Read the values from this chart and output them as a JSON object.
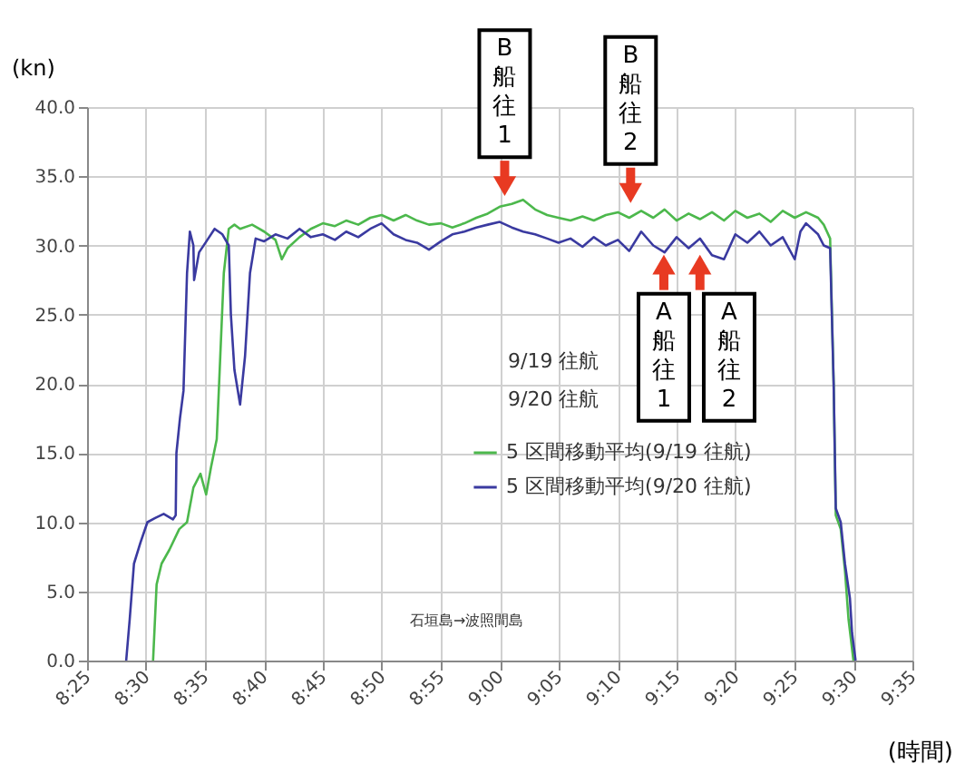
{
  "chart_data": {
    "type": "line",
    "ylabel": "(kn)",
    "xlabel": "(時間)",
    "xlim": [
      8.4167,
      9.5833
    ],
    "xticks": [
      {
        "value": 8.4167,
        "label": "8:25"
      },
      {
        "value": 8.5,
        "label": "8:30"
      },
      {
        "value": 8.5833,
        "label": "8:35"
      },
      {
        "value": 8.6667,
        "label": "8:40"
      },
      {
        "value": 8.75,
        "label": "8:45"
      },
      {
        "value": 8.8333,
        "label": "8:50"
      },
      {
        "value": 8.9167,
        "label": "8:55"
      },
      {
        "value": 9,
        "label": "9:00"
      },
      {
        "value": 9.0833,
        "label": "9:05"
      },
      {
        "value": 9.1667,
        "label": "9:10"
      },
      {
        "value": 9.25,
        "label": "9:15"
      },
      {
        "value": 9.3333,
        "label": "9:20"
      },
      {
        "value": 9.4167,
        "label": "9:25"
      },
      {
        "value": 9.5,
        "label": "9:30"
      },
      {
        "value": 9.5833,
        "label": "9:35"
      }
    ],
    "ylim": [
      0,
      40
    ],
    "yticks": [
      {
        "value": 0,
        "label": "0.0"
      },
      {
        "value": 5,
        "label": "5.0"
      },
      {
        "value": 10,
        "label": "10.0"
      },
      {
        "value": 15,
        "label": "15.0"
      },
      {
        "value": 20,
        "label": "20.0"
      },
      {
        "value": 25,
        "label": "25.0"
      },
      {
        "value": 30,
        "label": "30.0"
      },
      {
        "value": 35,
        "label": "35.0"
      },
      {
        "value": 40,
        "label": "40.0"
      }
    ],
    "grid": true,
    "legend": "center",
    "series": [
      {
        "name": "5 区間移動平均(9/19 往航)",
        "color": "#4cb84c",
        "x": [
          8.51,
          8.515,
          8.522,
          8.533,
          8.547,
          8.558,
          8.567,
          8.577,
          8.585,
          8.592,
          8.6,
          8.605,
          8.61,
          8.617,
          8.625,
          8.633,
          8.65,
          8.667,
          8.683,
          8.692,
          8.7,
          8.717,
          8.733,
          8.75,
          8.767,
          8.783,
          8.8,
          8.817,
          8.833,
          8.85,
          8.867,
          8.883,
          8.9,
          8.917,
          8.933,
          8.95,
          8.967,
          8.983,
          9.0,
          9.017,
          9.033,
          9.05,
          9.067,
          9.083,
          9.1,
          9.117,
          9.133,
          9.15,
          9.167,
          9.183,
          9.2,
          9.217,
          9.233,
          9.25,
          9.267,
          9.283,
          9.3,
          9.317,
          9.333,
          9.35,
          9.367,
          9.383,
          9.4,
          9.417,
          9.433,
          9.45,
          9.458,
          9.467,
          9.472,
          9.475,
          9.482,
          9.488,
          9.493,
          9.5
        ],
        "values": [
          0,
          5.5,
          7,
          8,
          9.5,
          10,
          12.5,
          13.5,
          12,
          14,
          16,
          22,
          28,
          31.2,
          31.5,
          31.2,
          31.5,
          31,
          30.4,
          29,
          29.8,
          30.6,
          31.2,
          31.6,
          31.4,
          31.8,
          31.5,
          32,
          32.2,
          31.8,
          32.2,
          31.8,
          31.5,
          31.6,
          31.3,
          31.6,
          32,
          32.3,
          32.8,
          33,
          33.3,
          32.6,
          32.2,
          32,
          31.8,
          32.1,
          31.8,
          32.2,
          32.4,
          32,
          32.5,
          32,
          32.6,
          31.8,
          32.3,
          31.9,
          32.4,
          31.8,
          32.5,
          32,
          32.3,
          31.7,
          32.5,
          32,
          32.4,
          32,
          31.5,
          30.5,
          20,
          10.5,
          9.5,
          6.5,
          3,
          0
        ]
      },
      {
        "name": "5 区間移動平均(9/20 往航)",
        "color": "#3a3aa0",
        "x": [
          8.472,
          8.477,
          8.483,
          8.492,
          8.502,
          8.513,
          8.525,
          8.538,
          8.542,
          8.543,
          8.548,
          8.553,
          8.558,
          8.562,
          8.567,
          8.568,
          8.575,
          8.588,
          8.597,
          8.608,
          8.617,
          8.62,
          8.625,
          8.633,
          8.64,
          8.647,
          8.655,
          8.667,
          8.683,
          8.7,
          8.717,
          8.733,
          8.75,
          8.767,
          8.783,
          8.8,
          8.817,
          8.833,
          8.85,
          8.867,
          8.883,
          8.9,
          8.917,
          8.933,
          8.95,
          8.967,
          8.983,
          9.0,
          9.017,
          9.033,
          9.05,
          9.067,
          9.083,
          9.1,
          9.117,
          9.133,
          9.15,
          9.167,
          9.183,
          9.2,
          9.217,
          9.233,
          9.25,
          9.267,
          9.283,
          9.3,
          9.317,
          9.333,
          9.35,
          9.367,
          9.383,
          9.4,
          9.417,
          9.425,
          9.433,
          9.45,
          9.458,
          9.467,
          9.472,
          9.475,
          9.482,
          9.488,
          9.495,
          9.498,
          9.503
        ],
        "values": [
          0,
          3,
          7,
          8.5,
          10,
          10.3,
          10.6,
          10.2,
          10.5,
          15,
          17.5,
          19.5,
          28,
          31,
          30,
          27.5,
          29.5,
          30.5,
          31.2,
          30.8,
          30,
          25,
          21,
          18.5,
          22,
          28,
          30.5,
          30.3,
          30.8,
          30.5,
          31.2,
          30.6,
          30.8,
          30.4,
          31,
          30.6,
          31.2,
          31.6,
          30.8,
          30.4,
          30.2,
          29.7,
          30.3,
          30.8,
          31,
          31.3,
          31.5,
          31.7,
          31.3,
          31,
          30.8,
          30.5,
          30.2,
          30.5,
          29.9,
          30.6,
          30,
          30.4,
          29.6,
          31,
          30,
          29.5,
          30.6,
          29.8,
          30.5,
          29.3,
          29,
          30.8,
          30.2,
          31,
          30,
          30.6,
          29,
          31,
          31.6,
          30.8,
          30,
          29.8,
          20,
          11,
          10,
          7,
          4.5,
          2,
          0
        ]
      }
    ],
    "annotations": [
      "9/19 往航",
      "9/20 往航",
      "石垣島→波照間島",
      {
        "text": "B船往1",
        "x": 9.007,
        "y": 33.5
      },
      {
        "text": "B船往2",
        "x": 9.185,
        "y": 33
      },
      {
        "text": "A船往1",
        "x": 9.232,
        "y": 29.4
      },
      {
        "text": "A船往2",
        "x": 9.283,
        "y": 29.4
      }
    ]
  }
}
